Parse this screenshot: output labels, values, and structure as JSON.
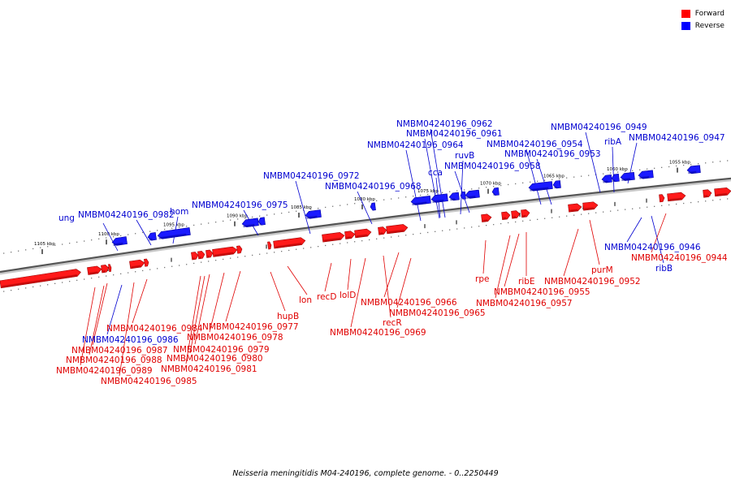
{
  "caption": "Neisseria meningitidis M04-240196, complete genome. - 0..2250449",
  "legend": [
    {
      "label": "Forward",
      "color": "#ff0000"
    },
    {
      "label": "Reverse",
      "color": "#0000ff"
    }
  ],
  "colors": {
    "forward": "#ff1a1a",
    "forward_dark": "#a00000",
    "reverse": "#1a1aff",
    "reverse_dark": "#0000a0",
    "forward_label": "#e00000",
    "reverse_label": "#0000d0"
  },
  "scale_ticks": [
    "1105 kbp",
    "1100 kbp",
    "1095 kbp",
    "1090 kbp",
    "1085 kbp",
    "1080 kbp",
    "1075 kbp",
    "1070 kbp",
    "1065 kbp",
    "1060 kbp",
    "1055 kbp"
  ],
  "genes": [
    {
      "name": "ung",
      "strand": "reverse"
    },
    {
      "name": "NMBM04240196_0982",
      "strand": "reverse"
    },
    {
      "name": "hom",
      "strand": "reverse"
    },
    {
      "name": "NMBM04240196_0975",
      "strand": "reverse"
    },
    {
      "name": "NMBM04240196_0972",
      "strand": "reverse"
    },
    {
      "name": "NMBM04240196_0968",
      "strand": "reverse"
    },
    {
      "name": "NMBM04240196_0964",
      "strand": "reverse"
    },
    {
      "name": "NMBM04240196_0962",
      "strand": "reverse"
    },
    {
      "name": "NMBM04240196_0961",
      "strand": "reverse"
    },
    {
      "name": "cca",
      "strand": "reverse"
    },
    {
      "name": "ruvB",
      "strand": "reverse"
    },
    {
      "name": "NMBM04240196_0958",
      "strand": "reverse"
    },
    {
      "name": "NMBM04240196_0954",
      "strand": "reverse"
    },
    {
      "name": "NMBM04240196_0953",
      "strand": "reverse"
    },
    {
      "name": "NMBM04240196_0949",
      "strand": "reverse"
    },
    {
      "name": "ribA",
      "strand": "reverse"
    },
    {
      "name": "NMBM04240196_0947",
      "strand": "reverse"
    },
    {
      "name": "NMBM04240196_0946",
      "strand": "reverse"
    },
    {
      "name": "ribB",
      "strand": "reverse"
    },
    {
      "name": "NMBM04240196_0986",
      "strand": "reverse"
    },
    {
      "name": "NMBM04240196_0944",
      "strand": "forward"
    },
    {
      "name": "purM",
      "strand": "forward"
    },
    {
      "name": "NMBM04240196_0952",
      "strand": "forward"
    },
    {
      "name": "ribE",
      "strand": "forward"
    },
    {
      "name": "NMBM04240196_0955",
      "strand": "forward"
    },
    {
      "name": "NMBM04240196_0957",
      "strand": "forward"
    },
    {
      "name": "rpe",
      "strand": "forward"
    },
    {
      "name": "NMBM04240196_0966",
      "strand": "forward"
    },
    {
      "name": "NMBM04240196_0965",
      "strand": "forward"
    },
    {
      "name": "recR",
      "strand": "forward"
    },
    {
      "name": "NMBM04240196_0969",
      "strand": "forward"
    },
    {
      "name": "lolD",
      "strand": "forward"
    },
    {
      "name": "recD",
      "strand": "forward"
    },
    {
      "name": "lon",
      "strand": "forward"
    },
    {
      "name": "hupB",
      "strand": "forward"
    },
    {
      "name": "NMBM04240196_0977",
      "strand": "forward"
    },
    {
      "name": "NMBM04240196_0978",
      "strand": "forward"
    },
    {
      "name": "NMBM04240196_0979",
      "strand": "forward"
    },
    {
      "name": "NMBM04240196_0980",
      "strand": "forward"
    },
    {
      "name": "NMBM04240196_0981",
      "strand": "forward"
    },
    {
      "name": "NMBM04240196_0984",
      "strand": "forward"
    },
    {
      "name": "NMBM04240196_0987",
      "strand": "forward"
    },
    {
      "name": "NMBM04240196_0988",
      "strand": "forward"
    },
    {
      "name": "NMBM04240196_0989",
      "strand": "forward"
    },
    {
      "name": "NMBM04240196_0985",
      "strand": "forward"
    }
  ]
}
